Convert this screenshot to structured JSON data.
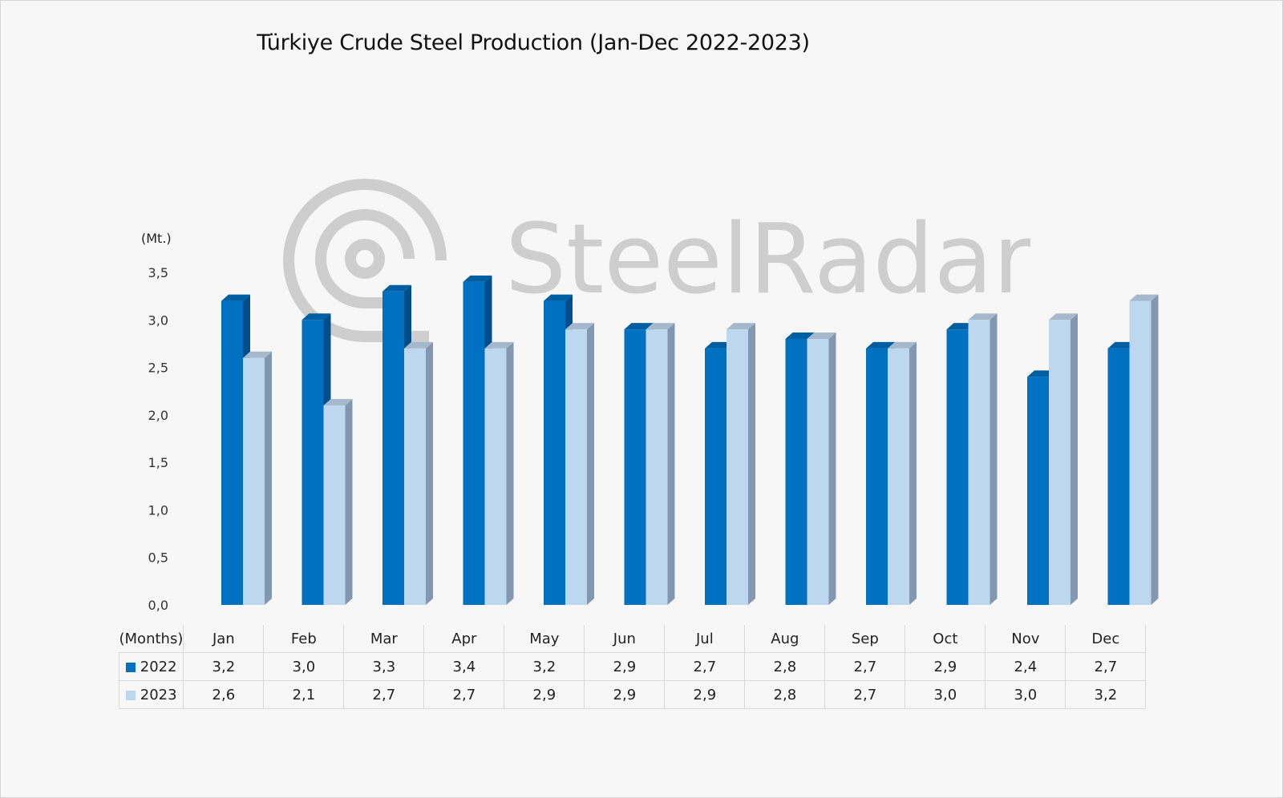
{
  "chart_data": {
    "type": "bar",
    "title": "Türkiye Crude Steel Production (Jan-Dec 2022-2023)",
    "ylabel": "(Mt.)",
    "xlabel": "(Months)",
    "ylim": [
      0,
      3.5
    ],
    "yticks": [
      "0,0",
      "0,5",
      "1,0",
      "1,5",
      "2,0",
      "2,5",
      "3,0",
      "3,5"
    ],
    "categories": [
      "Jan",
      "Feb",
      "Mar",
      "Apr",
      "May",
      "Jun",
      "Jul",
      "Aug",
      "Sep",
      "Oct",
      "Nov",
      "Dec"
    ],
    "series": [
      {
        "name": "2022",
        "color": "#0070c0",
        "values": [
          3.2,
          3.0,
          3.3,
          3.4,
          3.2,
          2.9,
          2.7,
          2.8,
          2.7,
          2.9,
          2.4,
          2.7
        ],
        "labels": [
          "3,2",
          "3,0",
          "3,3",
          "3,4",
          "3,2",
          "2,9",
          "2,7",
          "2,8",
          "2,7",
          "2,9",
          "2,4",
          "2,7"
        ]
      },
      {
        "name": "2023",
        "color": "#bdd7ee",
        "values": [
          2.6,
          2.1,
          2.7,
          2.7,
          2.9,
          2.9,
          2.9,
          2.8,
          2.7,
          3.0,
          3.0,
          3.2
        ],
        "labels": [
          "2,6",
          "2,1",
          "2,7",
          "2,7",
          "2,9",
          "2,9",
          "2,9",
          "2,8",
          "2,7",
          "3,0",
          "3,0",
          "3,2"
        ]
      }
    ],
    "legend": "data-table",
    "grid": false
  },
  "watermark": {
    "text": "SteelRadar"
  }
}
